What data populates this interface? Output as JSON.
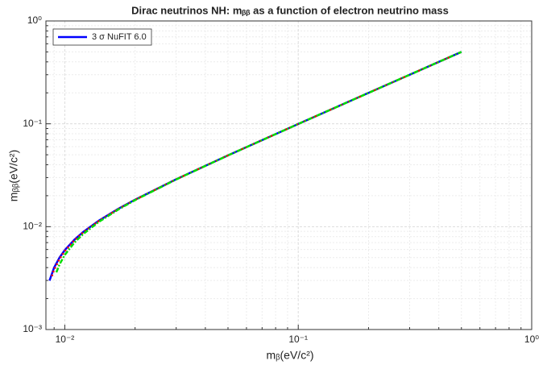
{
  "chart_data": {
    "type": "line",
    "title": "Dirac neutrinos NH: mᵦᵦ as a function of electron neutrino mass",
    "xlabel": "mᵦ(eV/c²)",
    "ylabel": "mᵦᵦ(eV/c²)",
    "xscale": "log",
    "yscale": "log",
    "grid": true,
    "legend": "upper left",
    "xlim": [
      0.0083,
      1
    ],
    "ylim": [
      0.001,
      1
    ],
    "xticks": [
      {
        "value": 0.01,
        "label": "10⁻²"
      },
      {
        "value": 0.1,
        "label": "10⁻¹"
      },
      {
        "value": 1,
        "label": "10⁰"
      }
    ],
    "yticks": [
      {
        "value": 0.001,
        "label": "10⁻³"
      },
      {
        "value": 0.01,
        "label": "10⁻²"
      },
      {
        "value": 0.1,
        "label": "10⁻¹"
      },
      {
        "value": 1,
        "label": "10⁰"
      }
    ],
    "xminorticks": [
      0.009,
      0.02,
      0.03,
      0.04,
      0.05,
      0.06,
      0.07,
      0.08,
      0.09,
      0.2,
      0.3,
      0.4,
      0.5,
      0.6,
      0.7,
      0.8,
      0.9
    ],
    "yminorticks": [
      0.002,
      0.003,
      0.004,
      0.005,
      0.006,
      0.007,
      0.008,
      0.009,
      0.02,
      0.03,
      0.04,
      0.05,
      0.06,
      0.07,
      0.08,
      0.09,
      0.2,
      0.3,
      0.4,
      0.5,
      0.6,
      0.7,
      0.8,
      0.9
    ],
    "series": [
      {
        "name": "3 σ NuFIT 6.0",
        "color": "#0000ff",
        "style": "solid",
        "x": [
          0.0086,
          0.009,
          0.0095,
          0.01,
          0.011,
          0.012,
          0.014,
          0.017,
          0.02,
          0.03,
          0.05,
          0.1,
          0.2,
          0.5
        ],
        "values": [
          0.00299,
          0.004,
          0.00502,
          0.00592,
          0.00748,
          0.00889,
          0.01145,
          0.01497,
          0.0183,
          0.0289,
          0.04935,
          0.0997,
          0.1998,
          0.4999
        ]
      },
      {
        "color": "#ff0000",
        "style": "dotted",
        "x": [
          0.0088,
          0.009,
          0.0095,
          0.01,
          0.011,
          0.012,
          0.014,
          0.017,
          0.02,
          0.03,
          0.05,
          0.1,
          0.2,
          0.5
        ],
        "values": [
          0.00331,
          0.00381,
          0.00487,
          0.00579,
          0.00738,
          0.0088,
          0.01138,
          0.01492,
          0.01826,
          0.02887,
          0.04933,
          0.09967,
          0.19983,
          0.49993
        ]
      },
      {
        "color": "#00dd00",
        "style": "dashdot",
        "x": [
          0.0092,
          0.0095,
          0.01,
          0.011,
          0.012,
          0.014,
          0.017,
          0.02,
          0.03,
          0.05,
          0.1,
          0.2,
          0.5
        ],
        "values": [
          0.0036,
          0.00431,
          0.00532,
          0.00702,
          0.0085,
          0.01115,
          0.01474,
          0.01812,
          0.02878,
          0.04928,
          0.09964,
          0.19982,
          0.49993
        ]
      }
    ]
  }
}
